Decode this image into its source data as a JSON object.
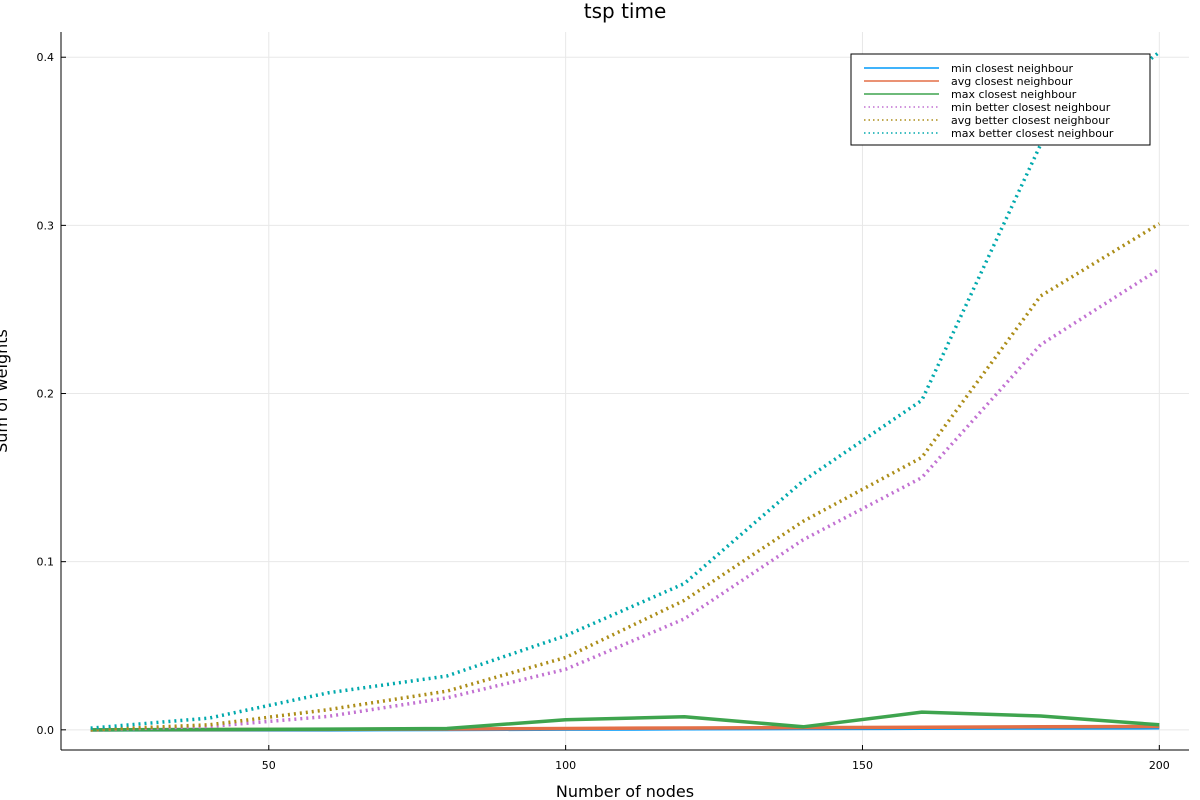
{
  "chart_data": {
    "type": "line",
    "title": "tsp time",
    "xlabel": "Number of nodes",
    "ylabel": "Sum of weights",
    "xlim": [
      15,
      205
    ],
    "ylim": [
      -0.012,
      0.415
    ],
    "xticks": [
      50,
      100,
      150,
      200
    ],
    "yticks": [
      0.0,
      0.1,
      0.2,
      0.3,
      0.4
    ],
    "xtick_labels": [
      "50",
      "100",
      "150",
      "200"
    ],
    "ytick_labels": [
      "0.0",
      "0.1",
      "0.2",
      "0.3",
      "0.4"
    ],
    "grid": true,
    "legend_position": "top-right",
    "x": [
      20,
      40,
      60,
      80,
      100,
      120,
      140,
      160,
      180,
      200
    ],
    "series": [
      {
        "name": "min closest neighbour",
        "color": "#009AFA",
        "style": "solid",
        "values": [
          0.0,
          0.0,
          0.0,
          0.0002,
          0.0004,
          0.0006,
          0.0008,
          0.0009,
          0.0011,
          0.0012
        ]
      },
      {
        "name": "avg closest neighbour",
        "color": "#E36F47",
        "style": "solid",
        "values": [
          0.0,
          0.0001,
          0.0003,
          0.0005,
          0.0008,
          0.0011,
          0.0013,
          0.0015,
          0.0018,
          0.002
        ]
      },
      {
        "name": "max closest neighbour",
        "color": "#3EA44E",
        "style": "solid",
        "values": [
          0.0,
          0.0002,
          0.0004,
          0.0008,
          0.006,
          0.0078,
          0.0018,
          0.0105,
          0.0082,
          0.003
        ]
      },
      {
        "name": "min better closest neighbour",
        "color": "#C271D2",
        "style": "dotted",
        "values": [
          0.0,
          0.002,
          0.008,
          0.019,
          0.036,
          0.066,
          0.113,
          0.15,
          0.229,
          0.274
        ]
      },
      {
        "name": "avg better closest neighbour",
        "color": "#AC8D18",
        "style": "dotted",
        "values": [
          0.0,
          0.003,
          0.012,
          0.023,
          0.043,
          0.077,
          0.124,
          0.162,
          0.258,
          0.301
        ]
      },
      {
        "name": "max better closest neighbour",
        "color": "#00A9AD",
        "style": "dotted",
        "values": [
          0.001,
          0.007,
          0.022,
          0.032,
          0.056,
          0.087,
          0.148,
          0.196,
          0.348,
          0.403
        ]
      }
    ]
  }
}
